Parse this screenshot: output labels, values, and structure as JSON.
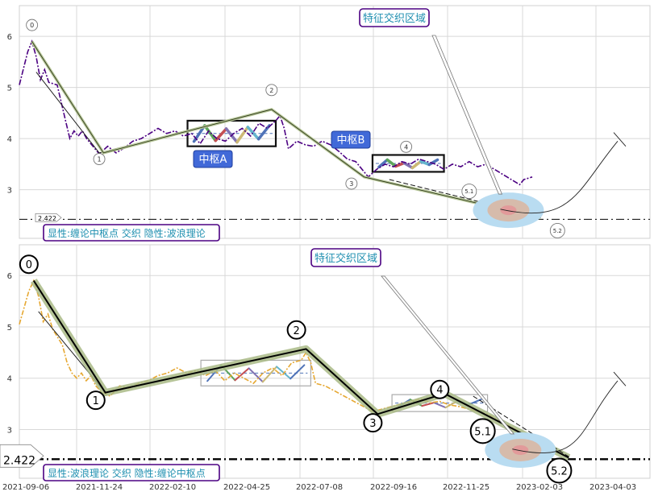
{
  "chart_data": [
    {
      "type": "line",
      "panel": "top",
      "y_ticks": [
        3,
        4,
        5,
        6
      ],
      "ylim": [
        2.05,
        6.6
      ],
      "grid": true,
      "price_series": [
        [
          0,
          5.05
        ],
        [
          2,
          5.7
        ],
        [
          3,
          5.9
        ],
        [
          4,
          5.6
        ],
        [
          5,
          5.15
        ],
        [
          6,
          5.35
        ],
        [
          7,
          5.1
        ],
        [
          9,
          5.05
        ],
        [
          10,
          4.7
        ],
        [
          11,
          4.35
        ],
        [
          12,
          4.0
        ],
        [
          13,
          4.15
        ],
        [
          14,
          4.05
        ],
        [
          15,
          4.15
        ],
        [
          16,
          4.0
        ],
        [
          17,
          3.9
        ],
        [
          19,
          3.7
        ],
        [
          21,
          3.85
        ],
        [
          23,
          3.72
        ],
        [
          25,
          3.82
        ],
        [
          27,
          3.95
        ],
        [
          29,
          4.0
        ],
        [
          31,
          4.1
        ],
        [
          33,
          4.2
        ],
        [
          35,
          4.1
        ],
        [
          37,
          4.15
        ],
        [
          39,
          4.05
        ],
        [
          41,
          4.1
        ],
        [
          43,
          3.9
        ],
        [
          45,
          4.15
        ],
        [
          47,
          4.0
        ],
        [
          49,
          3.95
        ],
        [
          51,
          4.1
        ],
        [
          53,
          4.2
        ],
        [
          55,
          4.05
        ],
        [
          57,
          4.3
        ],
        [
          59,
          4.2
        ],
        [
          61,
          4.35
        ],
        [
          62,
          4.45
        ],
        [
          63,
          4.2
        ],
        [
          64,
          3.8
        ],
        [
          66,
          3.95
        ],
        [
          68,
          3.88
        ],
        [
          70,
          3.85
        ],
        [
          72,
          3.95
        ],
        [
          74,
          3.88
        ],
        [
          76,
          3.75
        ],
        [
          78,
          3.6
        ],
        [
          80,
          3.55
        ],
        [
          82,
          3.35
        ],
        [
          83,
          3.25
        ],
        [
          85,
          3.4
        ],
        [
          87,
          3.5
        ],
        [
          89,
          3.45
        ],
        [
          91,
          3.55
        ],
        [
          93,
          3.5
        ],
        [
          95,
          3.6
        ],
        [
          97,
          3.55
        ],
        [
          99,
          3.5
        ],
        [
          101,
          3.4
        ],
        [
          103,
          3.5
        ],
        [
          105,
          3.45
        ],
        [
          107,
          3.55
        ],
        [
          109,
          3.45
        ],
        [
          111,
          3.5
        ],
        [
          113,
          3.4
        ],
        [
          115,
          3.3
        ],
        [
          117,
          3.2
        ],
        [
          119,
          3.1
        ],
        [
          120,
          3.2
        ],
        [
          122,
          3.25
        ]
      ],
      "bi_points": [
        [
          3,
          5.9
        ],
        [
          20,
          3.72
        ],
        [
          60,
          4.57
        ],
        [
          82,
          3.25
        ],
        [
          124,
          2.45
        ]
      ],
      "xian_points": [
        [
          4,
          5.3
        ],
        [
          19,
          3.72
        ],
        [
          60,
          4.57
        ],
        [
          82,
          3.25
        ]
      ],
      "zs_boxes": [
        {
          "x0": 40,
          "x1": 61,
          "y0": 3.85,
          "y1": 4.35
        },
        {
          "x0": 84,
          "x1": 101,
          "y0": 3.35,
          "y1": 3.68
        }
      ],
      "zs_labels": [
        "中枢A",
        "中枢B"
      ],
      "wave_labels": [
        {
          "text": "0",
          "x": 3,
          "y": 6.22
        },
        {
          "text": "1",
          "x": 19,
          "y": 3.6
        },
        {
          "text": "2",
          "x": 60,
          "y": 4.95
        },
        {
          "text": "3",
          "x": 79,
          "y": 3.12
        },
        {
          "text": "4",
          "x": 92,
          "y": 3.84
        },
        {
          "text": "5.1",
          "x": 107,
          "y": 2.97
        },
        {
          "text": "5.2",
          "x": 128,
          "y": 2.2
        }
      ],
      "h_line_value": 2.422,
      "h_line_label": "2.422",
      "callout_label": "特征交织区域",
      "bottom_label": "显性:缠论中枢点 交织 隐性:波浪理论"
    },
    {
      "type": "line",
      "panel": "bottom",
      "y_ticks": [
        3,
        4,
        5,
        6
      ],
      "ylim": [
        2.05,
        6.6
      ],
      "grid": true,
      "x_tick_labels": [
        "2021-09-06",
        "2021-11-24",
        "2022-02-10",
        "2022-04-25",
        "2022-07-08",
        "2022-09-16",
        "2022-11-25",
        "2023-02-03",
        "2023-04-03"
      ],
      "price_series": [
        [
          0,
          5.05
        ],
        [
          2,
          5.7
        ],
        [
          3,
          5.9
        ],
        [
          4,
          5.6
        ],
        [
          5,
          5.1
        ],
        [
          6,
          5.25
        ],
        [
          7,
          4.95
        ],
        [
          9,
          4.65
        ],
        [
          10,
          4.3
        ],
        [
          11,
          4.1
        ],
        [
          12,
          4.0
        ],
        [
          13,
          4.1
        ],
        [
          14,
          3.95
        ],
        [
          15,
          4.05
        ],
        [
          16,
          3.85
        ],
        [
          17,
          3.75
        ],
        [
          19,
          3.65
        ],
        [
          21,
          3.85
        ],
        [
          23,
          3.8
        ],
        [
          25,
          3.9
        ],
        [
          27,
          3.95
        ],
        [
          29,
          4.05
        ],
        [
          31,
          4.1
        ],
        [
          33,
          4.2
        ],
        [
          35,
          4.1
        ],
        [
          37,
          4.15
        ],
        [
          39,
          4.05
        ],
        [
          41,
          4.15
        ],
        [
          43,
          3.95
        ],
        [
          45,
          4.1
        ],
        [
          47,
          4.0
        ],
        [
          49,
          3.9
        ],
        [
          51,
          4.1
        ],
        [
          53,
          4.2
        ],
        [
          55,
          4.05
        ],
        [
          57,
          4.3
        ],
        [
          59,
          4.35
        ],
        [
          60,
          4.5
        ],
        [
          61,
          4.3
        ],
        [
          62,
          3.9
        ],
        [
          64,
          3.85
        ],
        [
          66,
          3.75
        ],
        [
          68,
          3.65
        ],
        [
          70,
          3.55
        ],
        [
          72,
          3.45
        ],
        [
          74,
          3.35
        ],
        [
          76,
          3.4
        ],
        [
          78,
          3.45
        ],
        [
          80,
          3.5
        ],
        [
          82,
          3.55
        ],
        [
          84,
          3.6
        ],
        [
          86,
          3.52
        ],
        [
          88,
          3.55
        ],
        [
          90,
          3.48
        ],
        [
          92,
          3.45
        ],
        [
          94,
          3.4
        ],
        [
          96,
          3.35
        ],
        [
          98,
          3.3
        ],
        [
          100,
          3.2
        ],
        [
          102,
          3.1
        ],
        [
          104,
          3.0
        ],
        [
          106,
          2.85
        ]
      ],
      "bi_points": [
        [
          3,
          5.9
        ],
        [
          18,
          3.72
        ],
        [
          60,
          4.57
        ],
        [
          75,
          3.3
        ],
        [
          89,
          3.7
        ],
        [
          115,
          2.45
        ]
      ],
      "xian_points": [
        [
          4,
          5.3
        ],
        [
          18,
          3.72
        ]
      ],
      "zs_boxes": [
        {
          "x0": 38,
          "x1": 61,
          "y0": 3.85,
          "y1": 4.35
        },
        {
          "x0": 78,
          "x1": 98,
          "y0": 3.35,
          "y1": 3.68
        }
      ],
      "wave_labels": [
        {
          "text": "0",
          "x": 2,
          "y": 6.22
        },
        {
          "text": "1",
          "x": 16,
          "y": 3.57
        },
        {
          "text": "2",
          "x": 58,
          "y": 4.94
        },
        {
          "text": "3",
          "x": 74,
          "y": 3.13
        },
        {
          "text": "4",
          "x": 88,
          "y": 3.78
        },
        {
          "text": "5.1",
          "x": 97,
          "y": 2.97
        },
        {
          "text": "5.2",
          "x": 113,
          "y": 2.2
        }
      ],
      "h_line_value": 2.422,
      "h_line_label": "2.422",
      "callout_label": "特征交织区域",
      "bottom_label": "显性:波浪理论 交织 隐性:缠论中枢点"
    }
  ]
}
